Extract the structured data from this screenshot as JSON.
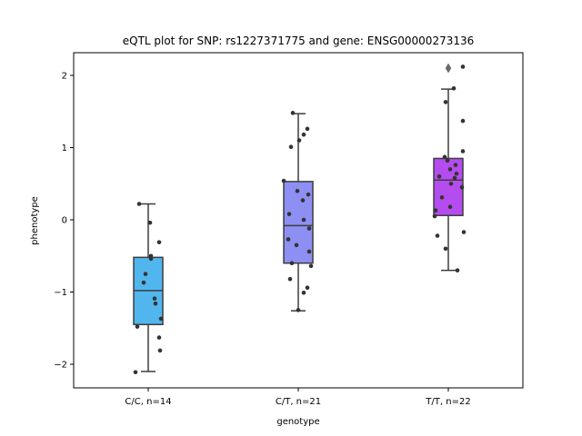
{
  "chart_data": {
    "type": "box",
    "title": "eQTL plot for SNP: rs1227371775 and gene: ENSG00000273136",
    "xlabel": "genotype",
    "ylabel": "phenotype",
    "ylim": [
      -2.3,
      2.3
    ],
    "yticks": [
      -2,
      -1,
      0,
      1,
      2
    ],
    "ytick_labels": [
      "−2",
      "−1",
      "0",
      "1",
      "2"
    ],
    "grid": false,
    "categories": [
      "C/C, n=14",
      "C/T, n=21",
      "T/T, n=22"
    ],
    "colors": [
      "#52b6ee",
      "#8e8ff3",
      "#b54cf0"
    ],
    "boxes": [
      {
        "whisker_low": -2.1,
        "q1": -1.45,
        "median": -0.98,
        "q3": -0.52,
        "whisker_high": 0.22,
        "outliers": []
      },
      {
        "whisker_low": -1.26,
        "q1": -0.6,
        "median": -0.08,
        "q3": 0.53,
        "whisker_high": 1.47,
        "outliers": []
      },
      {
        "whisker_low": -0.7,
        "q1": 0.06,
        "median": 0.55,
        "q3": 0.85,
        "whisker_high": 1.81,
        "outliers": [
          2.1
        ]
      }
    ],
    "points": [
      [
        [
          -0.1,
          0.22
        ],
        [
          0.02,
          -0.04
        ],
        [
          0.12,
          -0.31
        ],
        [
          0.03,
          -0.5
        ],
        [
          0.03,
          -0.54
        ],
        [
          -0.03,
          -0.75
        ],
        [
          -0.05,
          -0.87
        ],
        [
          0.07,
          -1.09
        ],
        [
          0.08,
          -1.16
        ],
        [
          0.14,
          -1.37
        ],
        [
          -0.12,
          -1.48
        ],
        [
          0.12,
          -1.63
        ],
        [
          0.13,
          -1.81
        ],
        [
          -0.14,
          -2.11
        ]
      ],
      [
        [
          -0.06,
          1.48
        ],
        [
          0.1,
          1.26
        ],
        [
          0.06,
          1.18
        ],
        [
          0.01,
          1.1
        ],
        [
          -0.08,
          1.01
        ],
        [
          -0.16,
          0.54
        ],
        [
          -0.01,
          0.4
        ],
        [
          0.11,
          0.35
        ],
        [
          0.05,
          0.27
        ],
        [
          -0.1,
          0.08
        ],
        [
          0.12,
          -0.12
        ],
        [
          -0.11,
          -0.27
        ],
        [
          -0.02,
          -0.35
        ],
        [
          0.12,
          -0.44
        ],
        [
          -0.07,
          -0.6
        ],
        [
          0.14,
          -0.64
        ],
        [
          -0.09,
          -0.82
        ],
        [
          0.1,
          -0.94
        ],
        [
          0.06,
          -1.01
        ],
        [
          0.0,
          -1.25
        ],
        [
          0.06,
          0.0
        ]
      ],
      [
        [
          0.16,
          2.12
        ],
        [
          0.06,
          1.82
        ],
        [
          -0.03,
          1.63
        ],
        [
          0.16,
          1.37
        ],
        [
          0.16,
          0.95
        ],
        [
          -0.04,
          0.87
        ],
        [
          -0.01,
          0.82
        ],
        [
          0.08,
          0.76
        ],
        [
          0.02,
          0.7
        ],
        [
          0.09,
          0.64
        ],
        [
          -0.1,
          0.6
        ],
        [
          0.03,
          0.5
        ],
        [
          0.15,
          0.45
        ],
        [
          -0.07,
          0.31
        ],
        [
          0.02,
          0.18
        ],
        [
          -0.14,
          0.13
        ],
        [
          -0.15,
          0.05
        ],
        [
          0.17,
          -0.17
        ],
        [
          -0.12,
          -0.22
        ],
        [
          -0.03,
          -0.4
        ],
        [
          0.1,
          -0.7
        ],
        [
          0.07,
          0.58
        ]
      ]
    ]
  }
}
